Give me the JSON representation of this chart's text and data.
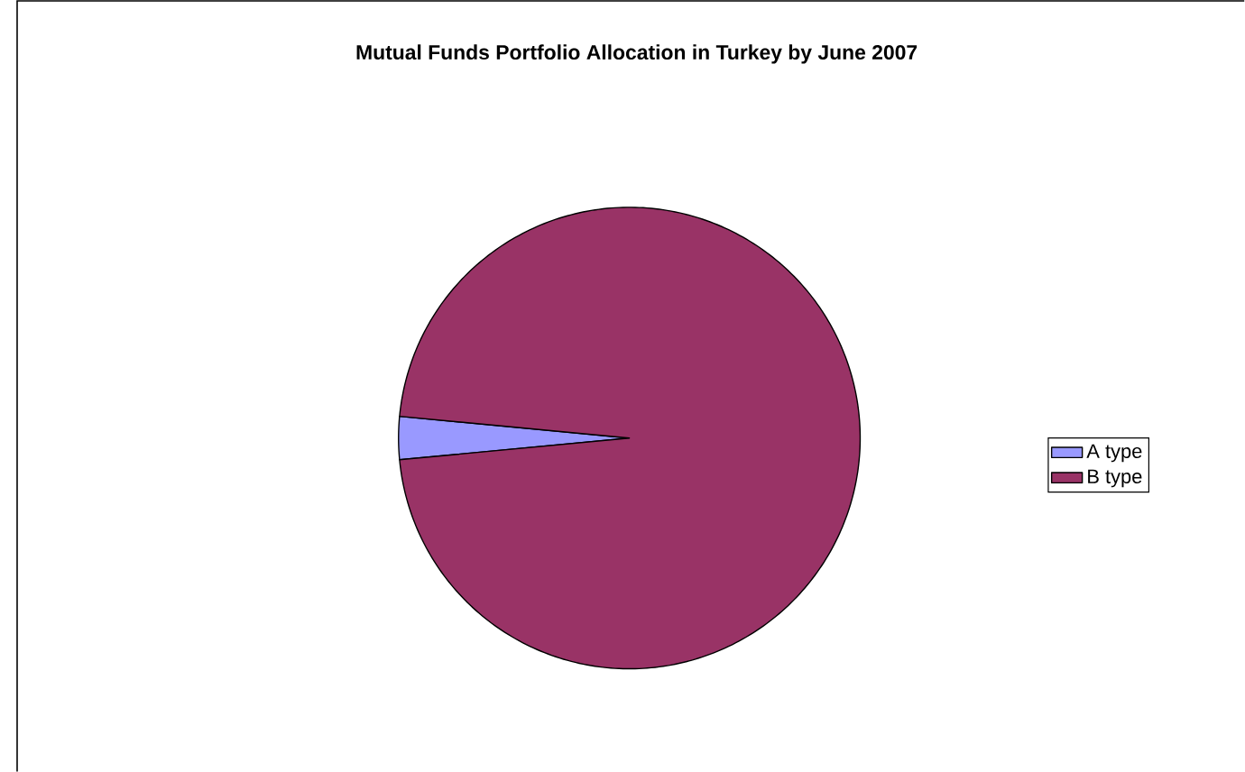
{
  "chart_data": {
    "type": "pie",
    "title": "Mutual Funds Portfolio Allocation in Turkey by June 2007",
    "categories": [
      "A type",
      "B type"
    ],
    "values": [
      3,
      97
    ],
    "colors": [
      "#9999ff",
      "#993366"
    ],
    "legend": "right"
  }
}
